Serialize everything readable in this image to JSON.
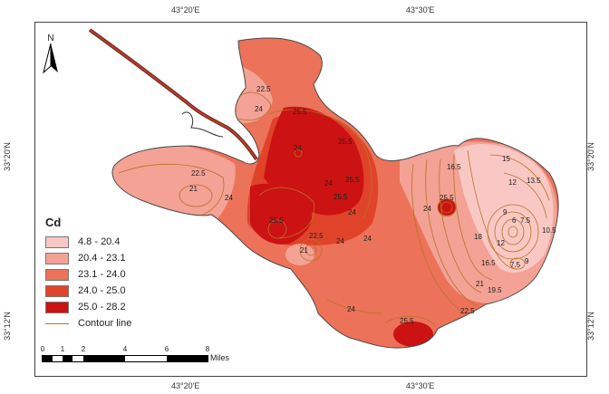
{
  "coordinates": {
    "top_left": "43°20'E",
    "top_right": "43°30'E",
    "bottom_left": "43°20'E",
    "bottom_right": "43°30'E",
    "left_upper": "33°20'N",
    "left_lower": "33°12'N",
    "right_upper": "33°20'N",
    "right_lower": "33°12'N"
  },
  "north_arrow": {
    "letter": "N",
    "icon": "north-arrow-icon"
  },
  "legend": {
    "title": "Cd",
    "classes": [
      {
        "label": "4.8 - 20.4",
        "color": "#f9c8c4"
      },
      {
        "label": "20.4 - 23.1",
        "color": "#f3a295"
      },
      {
        "label": "23.1 - 24.0",
        "color": "#ec7259"
      },
      {
        "label": "24.0 - 25.0",
        "color": "#e0432a"
      },
      {
        "label": "25.0 - 28.2",
        "color": "#cc1212"
      }
    ],
    "contour_label": "Contour line",
    "contour_color": "#b8722a"
  },
  "scale": {
    "ticks": [
      "0",
      "1",
      "2",
      "4",
      "6",
      "8"
    ],
    "units": "Miles"
  },
  "contour_labels": [
    "22.5",
    "24",
    "25.5",
    "24",
    "25.5",
    "25.5",
    "22.5",
    "21",
    "24",
    "24",
    "25.5",
    "24",
    "25.5",
    "24",
    "22.5",
    "21",
    "24",
    "24",
    "16.5",
    "15",
    "25.5",
    "13.5",
    "12",
    "9",
    "10.5",
    "6",
    "7.5",
    "12",
    "18",
    "16.5",
    "7.5",
    "9",
    "21",
    "19.5",
    "24",
    "22.5",
    "25.5"
  ]
}
